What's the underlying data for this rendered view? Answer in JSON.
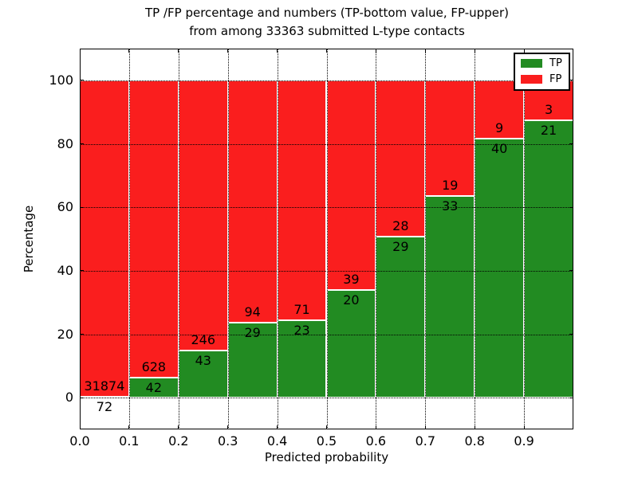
{
  "figure": {
    "title_line1": "TP /FP percentage and numbers (TP-bottom value, FP-upper)",
    "title_line2": "from among 33363 submitted L-type contacts",
    "xlabel": "Predicted probability",
    "ylabel": "Percentage"
  },
  "legend": {
    "items": [
      {
        "label": "TP",
        "color": "#228b22"
      },
      {
        "label": "FP",
        "color": "#fa1e1e"
      }
    ]
  },
  "chart_data": {
    "type": "bar",
    "stacked": true,
    "title": "TP /FP percentage and numbers (TP-bottom value, FP-upper) from among 33363 submitted L-type contacts",
    "xlabel": "Predicted probability",
    "ylabel": "Percentage",
    "total_contacts": 33363,
    "grid": true,
    "legend_position": "upper right",
    "xlim": [
      0.0,
      1.0
    ],
    "ylim": [
      -10,
      110
    ],
    "x_tick_values": [
      0.0,
      0.1,
      0.2,
      0.3,
      0.4,
      0.5,
      0.6,
      0.7,
      0.8,
      0.9
    ],
    "x_tick_labels": [
      "0.0",
      "0.1",
      "0.2",
      "0.3",
      "0.4",
      "0.5",
      "0.6",
      "0.7",
      "0.8",
      "0.9"
    ],
    "y_tick_values": [
      0,
      20,
      40,
      60,
      80,
      100
    ],
    "y_tick_labels": [
      "0",
      "20",
      "40",
      "60",
      "80",
      "100"
    ],
    "series": [
      {
        "name": "TP",
        "color": "#228b22",
        "values": [
          72,
          42,
          43,
          29,
          23,
          20,
          29,
          33,
          40,
          21
        ]
      },
      {
        "name": "FP",
        "color": "#fa1e1e",
        "values": [
          31874,
          628,
          246,
          94,
          71,
          39,
          28,
          19,
          9,
          3
        ]
      }
    ],
    "bins": [
      {
        "range": "0.0-0.1",
        "tp": 72,
        "fp": 31874,
        "tp_pct": 0.23
      },
      {
        "range": "0.1-0.2",
        "tp": 42,
        "fp": 628,
        "tp_pct": 6.27
      },
      {
        "range": "0.2-0.3",
        "tp": 43,
        "fp": 246,
        "tp_pct": 14.88
      },
      {
        "range": "0.3-0.4",
        "tp": 29,
        "fp": 94,
        "tp_pct": 23.58
      },
      {
        "range": "0.4-0.5",
        "tp": 23,
        "fp": 71,
        "tp_pct": 24.47
      },
      {
        "range": "0.5-0.6",
        "tp": 20,
        "fp": 39,
        "tp_pct": 33.9
      },
      {
        "range": "0.6-0.7",
        "tp": 29,
        "fp": 28,
        "tp_pct": 50.88
      },
      {
        "range": "0.7-0.8",
        "tp": 33,
        "fp": 19,
        "tp_pct": 63.46
      },
      {
        "range": "0.8-0.9",
        "tp": 40,
        "fp": 9,
        "tp_pct": 81.63
      },
      {
        "range": "0.9-1.0",
        "tp": 21,
        "fp": 3,
        "tp_pct": 87.5
      }
    ]
  }
}
